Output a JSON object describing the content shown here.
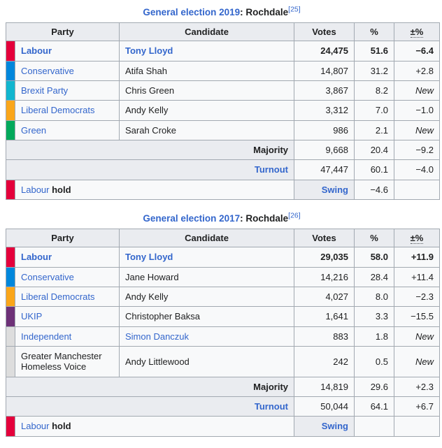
{
  "colors": {
    "link": "#3366CC",
    "border": "#A2A9B1",
    "header_bg": "#EAECF0",
    "row_bg": "#F8F9FA",
    "labour": "#E4003B",
    "conservative": "#0087DC",
    "brexit_party": "#12B6CF",
    "liberal_democrats": "#FAA61A",
    "green": "#02A95B",
    "ukip": "#6D3177",
    "independent": "#DDDDDD"
  },
  "tables": [
    {
      "title": {
        "link_text": "General election 2019",
        "rest": ": Rochdale",
        "ref": "[25]"
      },
      "headers": [
        "Party",
        "Candidate",
        "Votes",
        "%",
        "±%"
      ],
      "rows": [
        {
          "party": "Labour",
          "color": "#E4003B",
          "party_link": true,
          "candidate": "Tony Lloyd",
          "candidate_link": true,
          "winner": true,
          "votes": "24,475",
          "pct": "51.6",
          "change": "−6.4"
        },
        {
          "party": "Conservative",
          "color": "#0087DC",
          "party_link": true,
          "candidate": "Atifa Shah",
          "candidate_link": false,
          "winner": false,
          "votes": "14,807",
          "pct": "31.2",
          "change": "+2.8"
        },
        {
          "party": "Brexit Party",
          "color": "#12B6CF",
          "party_link": true,
          "candidate": "Chris Green",
          "candidate_link": false,
          "winner": false,
          "votes": "3,867",
          "pct": "8.2",
          "change": "New"
        },
        {
          "party": "Liberal Democrats",
          "color": "#FAA61A",
          "party_link": true,
          "candidate": "Andy Kelly",
          "candidate_link": false,
          "winner": false,
          "votes": "3,312",
          "pct": "7.0",
          "change": "−1.0"
        },
        {
          "party": "Green",
          "color": "#02A95B",
          "party_link": true,
          "candidate": "Sarah Croke",
          "candidate_link": false,
          "winner": false,
          "votes": "986",
          "pct": "2.1",
          "change": "New"
        }
      ],
      "majority": {
        "label": "Majority",
        "votes": "9,668",
        "pct": "20.4",
        "change": "−9.2"
      },
      "turnout": {
        "label": "Turnout",
        "votes": "47,447",
        "pct": "60.1",
        "change": "−4.0"
      },
      "result": {
        "party": "Labour",
        "color": "#E4003B",
        "status": "hold",
        "swing_label": "Swing",
        "swing": "−4.6",
        "change": ""
      }
    },
    {
      "title": {
        "link_text": "General election 2017",
        "rest": ": Rochdale",
        "ref": "[26]"
      },
      "headers": [
        "Party",
        "Candidate",
        "Votes",
        "%",
        "±%"
      ],
      "rows": [
        {
          "party": "Labour",
          "color": "#E4003B",
          "party_link": true,
          "candidate": "Tony Lloyd",
          "candidate_link": true,
          "winner": true,
          "votes": "29,035",
          "pct": "58.0",
          "change": "+11.9"
        },
        {
          "party": "Conservative",
          "color": "#0087DC",
          "party_link": true,
          "candidate": "Jane Howard",
          "candidate_link": false,
          "winner": false,
          "votes": "14,216",
          "pct": "28.4",
          "change": "+11.4"
        },
        {
          "party": "Liberal Democrats",
          "color": "#FAA61A",
          "party_link": true,
          "candidate": "Andy Kelly",
          "candidate_link": false,
          "winner": false,
          "votes": "4,027",
          "pct": "8.0",
          "change": "−2.3"
        },
        {
          "party": "UKIP",
          "color": "#6D3177",
          "party_link": true,
          "candidate": "Christopher Baksa",
          "candidate_link": false,
          "winner": false,
          "votes": "1,641",
          "pct": "3.3",
          "change": "−15.5"
        },
        {
          "party": "Independent",
          "color": "#DDDDDD",
          "party_link": true,
          "candidate": "Simon Danczuk",
          "candidate_link": true,
          "winner": false,
          "votes": "883",
          "pct": "1.8",
          "change": "New"
        },
        {
          "party": "Greater Manchester Homeless Voice",
          "color": "#DDDDDD",
          "party_link": false,
          "candidate": "Andy Littlewood",
          "candidate_link": false,
          "winner": false,
          "votes": "242",
          "pct": "0.5",
          "change": "New"
        }
      ],
      "majority": {
        "label": "Majority",
        "votes": "14,819",
        "pct": "29.6",
        "change": "+2.3"
      },
      "turnout": {
        "label": "Turnout",
        "votes": "50,044",
        "pct": "64.1",
        "change": "+6.7"
      },
      "result": {
        "party": "Labour",
        "color": "#E4003B",
        "status": "hold",
        "swing_label": "Swing",
        "swing": "",
        "change": ""
      }
    }
  ]
}
